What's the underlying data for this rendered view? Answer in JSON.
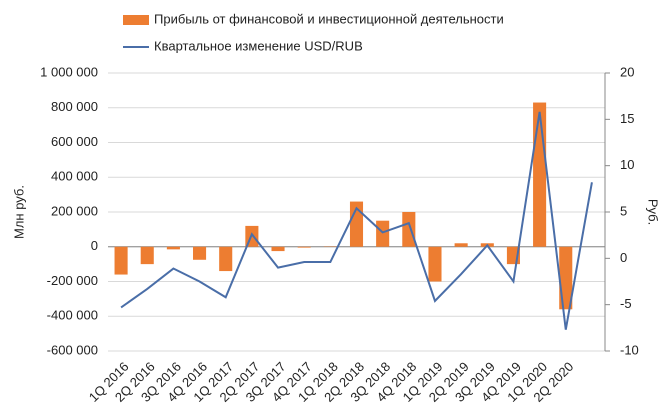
{
  "chart_data": {
    "type": "bar-line",
    "categories": [
      "1Q 2016",
      "2Q 2016",
      "3Q 2016",
      "4Q 2016",
      "1Q 2017",
      "2Q 2017",
      "3Q 2017",
      "4Q 2017",
      "1Q 2018",
      "2Q 2018",
      "3Q 2018",
      "4Q 2018",
      "1Q 2019",
      "2Q 2019",
      "3Q 2019",
      "4Q 2019",
      "1Q 2020",
      "2Q 2020",
      null
    ],
    "series": [
      {
        "name": "Прибыль от финансовой и инвестиционной деятельности",
        "type": "bar",
        "color": "#ed7d31",
        "values": [
          -160000,
          -100000,
          -15000,
          -75000,
          -140000,
          120000,
          -25000,
          -5000,
          2000,
          260000,
          150000,
          200000,
          -200000,
          20000,
          20000,
          -100000,
          830000,
          -360000,
          null
        ]
      },
      {
        "name": "Квартальное изменение USD/RUB",
        "type": "line",
        "axis": "y2",
        "color": "#4a6ea8",
        "values": [
          -5.3,
          -3.3,
          -1.1,
          -2.5,
          -4.2,
          2.6,
          -1.0,
          -0.4,
          -0.4,
          5.4,
          2.8,
          3.8,
          -4.6,
          -1.7,
          1.4,
          -2.5,
          15.8,
          -7.7,
          8.2
        ]
      }
    ],
    "ylabel": "Млн руб.",
    "y2label": "Руб.",
    "ylim": [
      -600000,
      1000000
    ],
    "yticks": [
      {
        "value": -600000,
        "label": "-600 000"
      },
      {
        "value": -400000,
        "label": "-400 000"
      },
      {
        "value": -200000,
        "label": "-200 000"
      },
      0,
      {
        "value": 200000,
        "label": "200 000"
      },
      {
        "value": 400000,
        "label": "400 000"
      },
      {
        "value": 600000,
        "label": "600 000"
      },
      {
        "value": 800000,
        "label": "800 000"
      },
      {
        "value": 1000000,
        "label": "1 000 000"
      }
    ],
    "y2lim": [
      -10,
      20
    ],
    "y2ticks": [
      -10,
      -5,
      0,
      5,
      10,
      15,
      20
    ],
    "grid": true
  }
}
